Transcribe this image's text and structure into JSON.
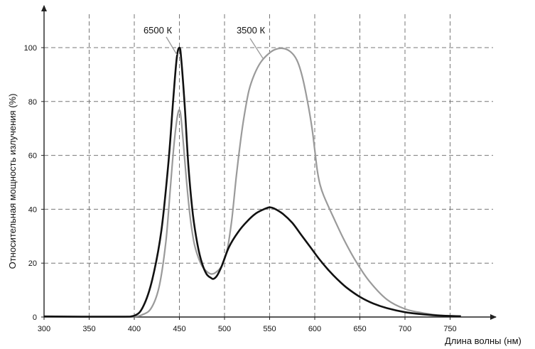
{
  "chart_data": {
    "type": "line",
    "title": "",
    "xlabel": "Длина волны (нм)",
    "ylabel": "Относительная мощность излучения (%)",
    "xlim": [
      300,
      762
    ],
    "ylim": [
      0,
      110
    ],
    "xticks": [
      300,
      350,
      400,
      450,
      500,
      550,
      600,
      650,
      700,
      750
    ],
    "yticks": [
      0,
      20,
      40,
      60,
      80,
      100
    ],
    "grid": true,
    "legend": "labels on curves",
    "series": [
      {
        "name": "6500 К",
        "color": "#111111",
        "x": [
          300,
          380,
          400,
          410,
          420,
          430,
          438,
          443,
          447,
          450,
          452,
          456,
          460,
          465,
          470,
          475,
          480,
          485,
          488,
          492,
          497,
          505,
          515,
          525,
          535,
          545,
          550,
          555,
          565,
          575,
          585,
          595,
          605,
          615,
          625,
          635,
          650,
          665,
          680,
          700,
          720,
          740,
          762
        ],
        "y": [
          0.2,
          0.1,
          0.5,
          4,
          14,
          32,
          58,
          80,
          96,
          100,
          96,
          78,
          56,
          38,
          27,
          20,
          16,
          14.5,
          14.2,
          15.5,
          19,
          26,
          31.5,
          35.5,
          38.5,
          40.2,
          40.7,
          40.3,
          38.2,
          35,
          30.5,
          26,
          21.5,
          17.5,
          14,
          11,
          7.5,
          5,
          3.3,
          1.8,
          1.0,
          0.5,
          0.3
        ]
      },
      {
        "name": "3500 К",
        "color": "#9a9a9a",
        "x": [
          300,
          390,
          410,
          420,
          428,
          435,
          440,
          444,
          448,
          451,
          454,
          458,
          462,
          466,
          470,
          475,
          480,
          485,
          490,
          497,
          503,
          508,
          513,
          518,
          522,
          527,
          533,
          540,
          548,
          556,
          565,
          573,
          580,
          586,
          592,
          597,
          600,
          603,
          606,
          610,
          620,
          632,
          645,
          660,
          680,
          700,
          720,
          740,
          762
        ],
        "y": [
          0.2,
          0.1,
          1,
          4,
          12,
          28,
          48,
          64,
          75,
          76,
          66,
          50,
          37,
          28,
          23,
          19,
          17,
          16,
          16.5,
          19,
          25,
          36,
          52,
          66,
          75,
          84,
          90,
          94.5,
          97.5,
          99.3,
          99.7,
          98.5,
          95.5,
          89.5,
          80,
          70,
          62,
          54,
          49,
          45,
          37.5,
          29,
          21,
          13.5,
          6.5,
          3,
          1.5,
          0.6,
          0.3
        ]
      }
    ]
  }
}
